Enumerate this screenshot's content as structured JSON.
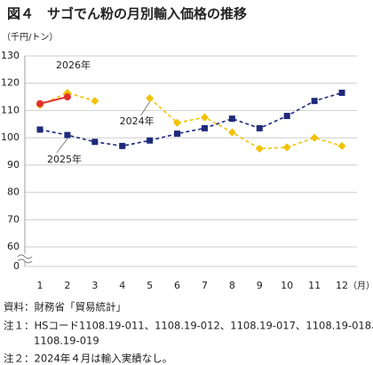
{
  "chart_data": {
    "type": "line",
    "title": "図４　サゴでん粉の月別輸入価格の推移",
    "y_unit": "（千円/トン）",
    "x_unit": "（月）",
    "categories": [
      "1",
      "2",
      "3",
      "4",
      "5",
      "6",
      "7",
      "8",
      "9",
      "10",
      "11",
      "12"
    ],
    "series": [
      {
        "name": "2024年",
        "color": "#f2c200",
        "dash": true,
        "marker": "diamond",
        "values": [
          112,
          116.5,
          113.5,
          null,
          114.5,
          105.5,
          107.5,
          102,
          96,
          96.5,
          100,
          97
        ]
      },
      {
        "name": "2025年",
        "color": "#1f2a7a",
        "dash": true,
        "marker": "square",
        "values": [
          103,
          101,
          98.5,
          97,
          99,
          101.5,
          103.5,
          107,
          103.5,
          108,
          113.5,
          116.5
        ]
      },
      {
        "name": "2026年",
        "color": "#e3302a",
        "dash": false,
        "marker": "circle",
        "values": [
          112.5,
          115,
          null,
          null,
          null,
          null,
          null,
          null,
          null,
          null,
          null,
          null
        ]
      }
    ],
    "ylim": [
      0,
      130
    ],
    "y_break": [
      0,
      60
    ],
    "yticks": [
      0,
      60,
      70,
      80,
      90,
      100,
      110,
      120,
      130
    ],
    "grid": true,
    "notes": [
      "資料：財務省「貿易統計」",
      "注１：HSコード1108.19-011、1108.19-012、1108.19-017、1108.19-018、",
      "1108.19-019",
      "注２：2024年４月は輸入実績なし。"
    ]
  }
}
